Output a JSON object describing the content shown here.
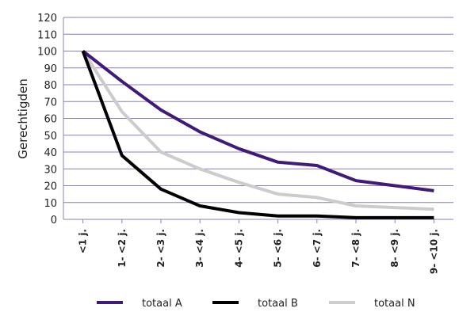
{
  "chart_data": {
    "type": "line",
    "title": "",
    "xlabel": "",
    "ylabel": "Gerechtigden",
    "ylim": [
      0,
      120
    ],
    "yticks": [
      0,
      10,
      20,
      30,
      40,
      50,
      60,
      70,
      80,
      90,
      100,
      110,
      120
    ],
    "grid": "horizontal",
    "legend": "bottom",
    "categories": [
      "<1 j.",
      "1- <2 j.",
      "2- <3 j.",
      "3- <4 j.",
      "4- <5 j.",
      "5- <6 j.",
      "6- <7 j.",
      "7- <8 j.",
      "8- <9 j.",
      "9- <10 j."
    ],
    "series": [
      {
        "name": "totaal A",
        "color": "#3f1a7a",
        "values": [
          100,
          82,
          65,
          52,
          42,
          34,
          32,
          23,
          20,
          17
        ]
      },
      {
        "name": "totaal B",
        "color": "#000000",
        "values": [
          100,
          38,
          18,
          8,
          4,
          2,
          2,
          1,
          1,
          1
        ]
      },
      {
        "name": "totaal N",
        "color": "#cccccc",
        "values": [
          100,
          64,
          40,
          30,
          22,
          15,
          13,
          8,
          7,
          6
        ]
      }
    ]
  },
  "colors": {
    "grid": "#8a7fb5",
    "axis": "#8a7fb5"
  }
}
